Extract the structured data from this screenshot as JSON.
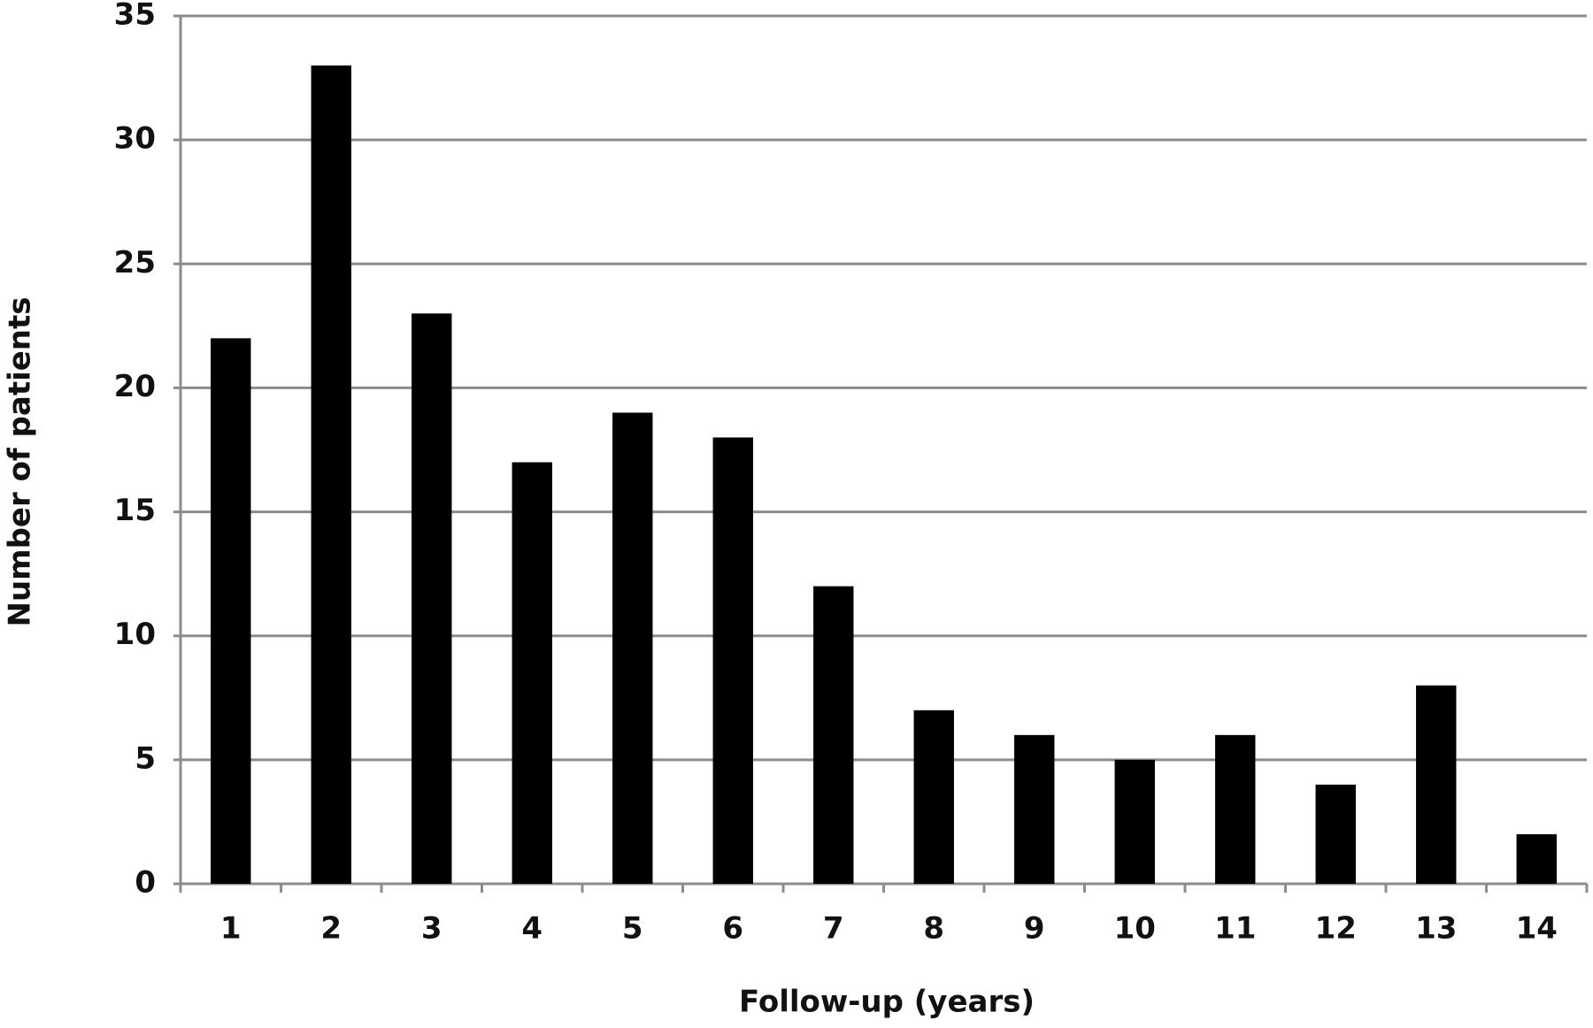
{
  "chart_data": {
    "type": "bar",
    "x_label": "Follow-up (years)",
    "y_label": "Number of patients",
    "categories": [
      "1",
      "2",
      "3",
      "4",
      "5",
      "6",
      "7",
      "8",
      "9",
      "10",
      "11",
      "12",
      "13",
      "14"
    ],
    "values": [
      22,
      33,
      23,
      17,
      19,
      18,
      12,
      7,
      6,
      5,
      6,
      4,
      8,
      2
    ],
    "color": "#000000",
    "ylim": [
      0,
      35
    ],
    "yticks": [
      0,
      5,
      10,
      15,
      20,
      25,
      30,
      35
    ],
    "grid": true
  }
}
